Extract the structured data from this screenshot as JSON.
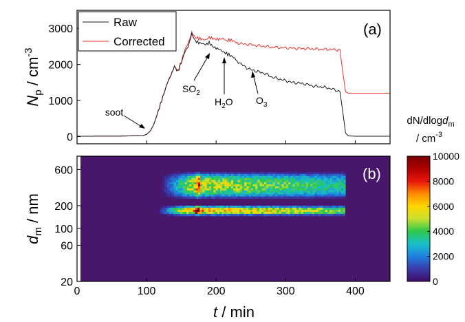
{
  "chart_data": [
    {
      "panel_label": "(a)",
      "type": "line",
      "ylabel_parts": [
        "N",
        "p",
        " / cm",
        "-3"
      ],
      "ylim": [
        -200,
        3500
      ],
      "yticks": [
        0,
        1000,
        2000,
        3000
      ],
      "xlim": [
        0,
        450
      ],
      "legend": {
        "placement": "top-left",
        "entries": [
          "Raw",
          "Corrected"
        ]
      },
      "colors": {
        "raw": "#1a1a1a",
        "corrected": "#e8322a"
      },
      "series": [
        {
          "name": "Raw",
          "x": [
            0,
            60,
            95,
            100,
            105,
            110,
            115,
            120,
            125,
            130,
            135,
            140,
            145,
            150,
            155,
            160,
            165,
            170,
            175,
            180,
            185,
            190,
            195,
            200,
            205,
            210,
            215,
            220,
            225,
            230,
            240,
            250,
            260,
            270,
            280,
            290,
            300,
            310,
            320,
            330,
            340,
            350,
            360,
            370,
            378,
            382,
            386,
            390,
            400,
            420,
            450
          ],
          "y": [
            10,
            12,
            30,
            60,
            150,
            320,
            600,
            900,
            1200,
            1500,
            1700,
            1950,
            1800,
            2050,
            2350,
            2500,
            2850,
            2650,
            2600,
            2580,
            2550,
            2600,
            2500,
            2450,
            2420,
            2350,
            2300,
            2250,
            2200,
            2100,
            1950,
            1850,
            1800,
            1750,
            1650,
            1600,
            1550,
            1500,
            1480,
            1450,
            1400,
            1380,
            1350,
            1300,
            1250,
            700,
            100,
            20,
            10,
            10,
            10
          ]
        },
        {
          "name": "Corrected",
          "x": [
            0,
            60,
            95,
            100,
            105,
            110,
            115,
            120,
            125,
            130,
            135,
            140,
            145,
            150,
            155,
            160,
            165,
            170,
            175,
            180,
            185,
            190,
            195,
            200,
            205,
            210,
            215,
            220,
            225,
            230,
            240,
            250,
            260,
            270,
            280,
            290,
            300,
            310,
            320,
            330,
            340,
            350,
            360,
            370,
            378,
            382,
            386,
            390,
            400,
            420,
            450
          ],
          "y": [
            10,
            12,
            30,
            60,
            150,
            320,
            600,
            900,
            1200,
            1500,
            1700,
            1950,
            1820,
            2080,
            2400,
            2600,
            2880,
            2750,
            2720,
            2700,
            2680,
            2750,
            2720,
            2700,
            2700,
            2720,
            2650,
            2680,
            2650,
            2600,
            2560,
            2550,
            2520,
            2500,
            2480,
            2470,
            2460,
            2450,
            2440,
            2440,
            2430,
            2420,
            2420,
            2410,
            2400,
            1800,
            1250,
            1200,
            1200,
            1200,
            1200
          ]
        }
      ],
      "annotations": [
        {
          "text": "soot",
          "x": 100,
          "y": 60
        },
        {
          "text_parts": [
            "SO",
            "2"
          ],
          "x": 160,
          "y": 2500
        },
        {
          "text_parts": [
            "H",
            "2",
            "O"
          ],
          "x": 210,
          "y": 2350
        },
        {
          "text_parts": [
            "O",
            "3"
          ],
          "x": 255,
          "y": 1850
        }
      ]
    },
    {
      "panel_label": "(b)",
      "type": "heatmap",
      "xlabel_parts": [
        "t",
        " / min"
      ],
      "ylabel_parts": [
        "d",
        "m",
        " / nm"
      ],
      "xlim": [
        0,
        450
      ],
      "xticks": [
        0,
        100,
        200,
        300,
        400
      ],
      "ylim": [
        20,
        900
      ],
      "yscale": "log",
      "yticks": [
        20,
        60,
        100,
        200,
        600
      ],
      "background_color": "#48176b",
      "colorbar": {
        "title_parts": [
          "dN/dlog",
          "d",
          "m"
        ],
        "unit_parts": [
          "/ cm",
          "-3"
        ],
        "min": 0,
        "max": 10000,
        "ticks": [
          0,
          2000,
          4000,
          6000,
          8000,
          10000
        ],
        "colors": [
          "#3e0b68",
          "#3a3aa8",
          "#1f7fe0",
          "#18c0c8",
          "#2ec84a",
          "#c8e030",
          "#ffd600",
          "#ff8a00",
          "#e8160c",
          "#b00000",
          "#780000"
        ]
      },
      "bands": [
        {
          "t_start": 117,
          "t_end": 383,
          "d_low": 245,
          "d_high": 560,
          "level": 5000
        },
        {
          "t_start": 113,
          "t_end": 383,
          "d_low": 148,
          "d_high": 200,
          "level": 6500
        }
      ]
    }
  ]
}
